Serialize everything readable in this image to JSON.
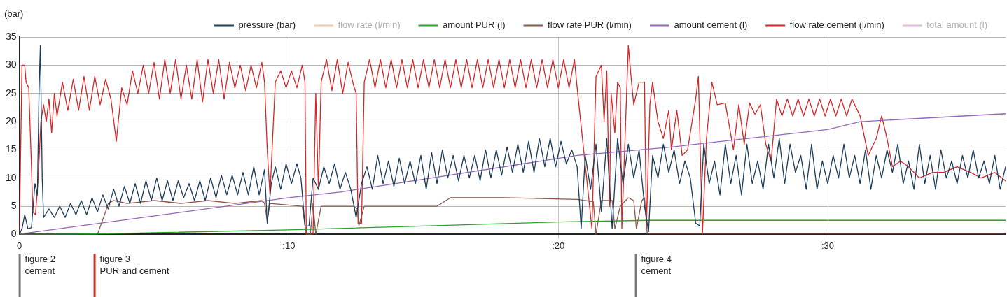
{
  "chart_data": {
    "type": "line",
    "ylabel": "(bar)",
    "xlim": [
      0,
      36.6
    ],
    "xticks": [
      0,
      {
        "value": 10,
        "label": ":10"
      },
      {
        "value": 20,
        "label": ":20"
      },
      {
        "value": 30,
        "label": ":30"
      }
    ],
    "ylim": [
      0,
      35
    ],
    "yticks": [
      0,
      5,
      10,
      15,
      20,
      25,
      30,
      35
    ],
    "grid": true,
    "legend": "top",
    "marker": "none",
    "line_style": "solid",
    "annotations": [
      "figure 2\ncement",
      "figure 3\nPUR and cement",
      "figure 4\ncement"
    ],
    "series": [
      {
        "name": "pressure (bar)",
        "color": "#1b3d5c",
        "x": [
          0,
          0.1,
          0.2,
          0.32,
          0.45,
          0.58,
          0.67,
          0.73,
          0.78,
          0.85,
          0.9,
          1.1,
          1.3,
          1.5,
          1.7,
          1.9,
          2.1,
          2.3,
          2.5,
          2.7,
          2.9,
          3.1,
          3.3,
          3.5,
          3.7,
          3.9,
          4.1,
          4.3,
          4.5,
          4.7,
          4.9,
          5.1,
          5.3,
          5.5,
          5.7,
          5.9,
          6.1,
          6.3,
          6.5,
          6.7,
          6.9,
          7.1,
          7.3,
          7.5,
          7.7,
          7.9,
          8.1,
          8.3,
          8.5,
          8.7,
          8.9,
          9.1,
          9.2,
          9.35,
          9.5,
          9.7,
          9.9,
          10.1,
          10.3,
          10.45,
          10.6,
          10.75,
          10.9,
          11.1,
          11.3,
          11.5,
          11.7,
          11.9,
          12.1,
          12.3,
          12.5,
          12.7,
          12.9,
          13.1,
          13.3,
          13.5,
          13.7,
          13.9,
          14.1,
          14.3,
          14.5,
          14.7,
          14.9,
          15.1,
          15.3,
          15.5,
          15.7,
          15.9,
          16.1,
          16.3,
          16.5,
          16.7,
          16.9,
          17.1,
          17.3,
          17.5,
          17.7,
          17.9,
          18.1,
          18.3,
          18.5,
          18.7,
          18.9,
          19.1,
          19.3,
          19.5,
          19.7,
          19.9,
          20.1,
          20.3,
          20.5,
          20.7,
          20.85,
          21,
          21.2,
          21.4,
          21.6,
          21.8,
          22,
          22.2,
          22.4,
          22.6,
          22.8,
          23,
          23.2,
          23.35,
          23.5,
          23.7,
          23.9,
          24.1,
          24.3,
          24.5,
          24.7,
          24.9,
          25.1,
          25.25,
          25.4,
          25.6,
          25.8,
          26,
          26.2,
          26.4,
          26.6,
          26.8,
          27,
          27.2,
          27.4,
          27.6,
          27.8,
          28,
          28.2,
          28.4,
          28.6,
          28.8,
          29,
          29.2,
          29.4,
          29.6,
          29.8,
          30,
          30.2,
          30.4,
          30.6,
          30.8,
          31,
          31.2,
          31.4,
          31.6,
          31.8,
          32,
          32.2,
          32.4,
          32.6,
          32.8,
          33,
          33.2,
          33.4,
          33.6,
          33.8,
          34,
          34.2,
          34.4,
          34.6,
          34.8,
          35,
          35.2,
          35.4,
          35.6,
          35.8,
          36,
          36.2,
          36.4,
          36.6
        ],
        "values": [
          0,
          1,
          3.5,
          1,
          1.2,
          9,
          7,
          25,
          33.5,
          10,
          3,
          4.5,
          3,
          5,
          3,
          5.5,
          3.5,
          6,
          3.5,
          6.5,
          4,
          7,
          4.5,
          8,
          5,
          8.5,
          5.5,
          9,
          5.5,
          9.5,
          6,
          10,
          6,
          9.5,
          6,
          9.5,
          6.5,
          9,
          6,
          9.5,
          6,
          10,
          6.5,
          10.5,
          7,
          10.5,
          7,
          11,
          7,
          12,
          7,
          11.5,
          2,
          9,
          12,
          8,
          12.5,
          9,
          12.5,
          10,
          1.5,
          1.5,
          10,
          8,
          12,
          9,
          12.5,
          8,
          11,
          8,
          3,
          9,
          12,
          8,
          14,
          9,
          13,
          8.5,
          13.5,
          9,
          13,
          9,
          14,
          8,
          14.5,
          9,
          15,
          10,
          14,
          9.5,
          14,
          10,
          14,
          9.5,
          15,
          10,
          15,
          10.5,
          15.5,
          11,
          16,
          11,
          16.5,
          11,
          17,
          12,
          17,
          12,
          16.5,
          12.5,
          15,
          12,
          1,
          14,
          8,
          16,
          4,
          17,
          1,
          17,
          9,
          16,
          10,
          15,
          5,
          0.5,
          14,
          10,
          16,
          11,
          15,
          9,
          13,
          10,
          2,
          1.5,
          16,
          9,
          13,
          7,
          16,
          9,
          14,
          7,
          16,
          9,
          13,
          8,
          16,
          10,
          17,
          9,
          16,
          11,
          14,
          8,
          16,
          8,
          13,
          9,
          14,
          10,
          16,
          10,
          14,
          9,
          15,
          8,
          14,
          10,
          15,
          11,
          16,
          9,
          13,
          8,
          16,
          9,
          14,
          8,
          15,
          10,
          13,
          9,
          14,
          10,
          15,
          10,
          13,
          9,
          14,
          8,
          12
        ]
      },
      {
        "name": "flow rate (l/min)",
        "color": "#f5c6a0"
      },
      {
        "name": "amount PUR (l)",
        "color": "#2ca02c",
        "x": [
          0,
          3,
          10,
          15,
          20,
          23.3,
          36.6
        ],
        "values": [
          0,
          0.1,
          0.8,
          1.5,
          2.2,
          2.5,
          2.5
        ]
      },
      {
        "name": "flow rate PUR (l/min)",
        "color": "#8c564b",
        "x": [
          0,
          2.9,
          3.2,
          3.3,
          3.5,
          4,
          5,
          6,
          7,
          8,
          9,
          9.1,
          9.2,
          9.3,
          10.5,
          10.65,
          10.8,
          10.9,
          11,
          11.2,
          12.4,
          12.55,
          12.6,
          12.8,
          14,
          15.5,
          16,
          18,
          20.7,
          21.3,
          21.4,
          21.6,
          22,
          22.1,
          22.3,
          22.6,
          22.8,
          22.9,
          23.1,
          23.2,
          23.3,
          36.6
        ],
        "values": [
          0,
          0,
          4,
          5.5,
          6,
          5.5,
          6,
          5.5,
          6,
          5.5,
          6,
          5.5,
          2.4,
          5.5,
          5,
          0,
          0,
          5.5,
          0,
          5,
          5,
          4.5,
          1.5,
          5,
          5,
          5,
          6.5,
          6.5,
          6.2,
          5.8,
          0,
          6,
          6,
          1,
          5,
          6.5,
          6,
          1,
          6,
          6.5,
          0.2,
          0.2
        ]
      },
      {
        "name": "amount cement (l)",
        "color": "#9467bd",
        "x": [
          0,
          0.2,
          10,
          11.9,
          20.7,
          24.2,
          30,
          31.2,
          36.6
        ],
        "values": [
          0,
          0.2,
          6.5,
          7.5,
          14,
          15.5,
          18.6,
          20,
          21.4
        ]
      },
      {
        "name": "flow rate cement (l/min)",
        "color": "#d62728",
        "x": [
          0,
          0.05,
          0.1,
          0.2,
          0.25,
          0.35,
          0.45,
          0.5,
          0.6,
          0.7,
          0.8,
          0.9,
          1,
          1.1,
          1.2,
          1.3,
          1.4,
          1.6,
          1.8,
          2,
          2.2,
          2.4,
          2.6,
          2.8,
          3,
          3.2,
          3.4,
          3.6,
          3.8,
          4,
          4.2,
          4.4,
          4.6,
          4.8,
          5,
          5.2,
          5.4,
          5.6,
          5.8,
          6,
          6.2,
          6.4,
          6.6,
          6.8,
          7,
          7.2,
          7.4,
          7.6,
          7.8,
          8,
          8.2,
          8.4,
          8.6,
          8.8,
          9,
          9.1,
          9.2,
          9.3,
          9.4,
          9.5,
          9.7,
          9.9,
          10.1,
          10.3,
          10.5,
          10.6,
          10.65,
          10.8,
          10.9,
          11,
          11.1,
          11.2,
          11.4,
          11.6,
          11.8,
          12,
          12.2,
          12.4,
          12.5,
          12.57,
          12.7,
          12.8,
          13,
          13.2,
          13.4,
          13.6,
          13.8,
          14,
          14.2,
          14.4,
          14.6,
          14.8,
          15,
          15.2,
          15.4,
          15.6,
          15.8,
          16,
          16.2,
          16.4,
          16.6,
          16.8,
          17,
          17.2,
          17.4,
          17.6,
          17.8,
          18,
          18.2,
          18.4,
          18.6,
          18.8,
          19,
          19.2,
          19.4,
          19.6,
          19.8,
          20,
          20.2,
          20.4,
          20.6,
          20.7,
          21.25,
          21.4,
          21.6,
          21.7,
          21.8,
          21.9,
          21.96,
          22.1,
          22.2,
          22.3,
          22.36,
          22.6,
          22.7,
          22.8,
          23,
          23.2,
          23.27,
          23.4,
          23.5,
          23.7,
          23.9,
          24.1,
          24.2,
          24.4,
          24.6,
          24.8,
          25.1,
          25.2,
          25.35,
          25.5,
          25.7,
          25.9,
          26.2,
          26.5,
          26.7,
          26.9,
          27.1,
          27.3,
          27.5,
          27.7,
          27.9,
          28.1,
          28.3,
          28.5,
          28.7,
          28.9,
          29.1,
          29.3,
          29.5,
          29.7,
          29.9,
          30.1,
          30.3,
          30.5,
          30.7,
          30.9,
          31.2,
          31.5,
          31.8,
          32,
          32.2,
          32.4,
          32.7,
          33,
          33.4,
          33.9,
          34.3,
          34.8,
          35.3,
          35.7,
          36.2,
          36.6
        ],
        "values": [
          0,
          15,
          30,
          30,
          27,
          26,
          12,
          4,
          3.5,
          10,
          20,
          23,
          20,
          24,
          18,
          25,
          21,
          27,
          22,
          27.5,
          22,
          28,
          22,
          28,
          23,
          27.5,
          24,
          16.5,
          26,
          23,
          29,
          25,
          30,
          25,
          30.5,
          24,
          31,
          25,
          31,
          24,
          30,
          24,
          31,
          23.5,
          31,
          25,
          31,
          24,
          30.5,
          26,
          30,
          25.5,
          30,
          26,
          30.5,
          27,
          15,
          7,
          17,
          27,
          29,
          26,
          29,
          26,
          30,
          27,
          0,
          0,
          0,
          25,
          8,
          27,
          31,
          25.5,
          31,
          25,
          30.5,
          26.5,
          25,
          2,
          2,
          27,
          31,
          26,
          31,
          26,
          31,
          26,
          31,
          26,
          31,
          26,
          31,
          26,
          31,
          26,
          31,
          26,
          31,
          26,
          31,
          26,
          31,
          26,
          31,
          26,
          31,
          26,
          31,
          26,
          31,
          26,
          31,
          26,
          31,
          26,
          31,
          26,
          31,
          26,
          31,
          26,
          1,
          28,
          30,
          20,
          29,
          5,
          25,
          18,
          27,
          26,
          1,
          33.5,
          28,
          23,
          27,
          27,
          1,
          23,
          27,
          20,
          17,
          22,
          15,
          22,
          14,
          15,
          24,
          28,
          0,
          17,
          27,
          23,
          23.3,
          15,
          23,
          16,
          23.3,
          21.3,
          23,
          16,
          13,
          24,
          21,
          24,
          21,
          24,
          21,
          24,
          21,
          24,
          21,
          24,
          21,
          24,
          21,
          24,
          21,
          14,
          17,
          21,
          17,
          12,
          13,
          12,
          10,
          11,
          11,
          12,
          11,
          10,
          11,
          9.5
        ]
      },
      {
        "name": "total amount (l)",
        "color": "#e8b4e0"
      }
    ]
  }
}
